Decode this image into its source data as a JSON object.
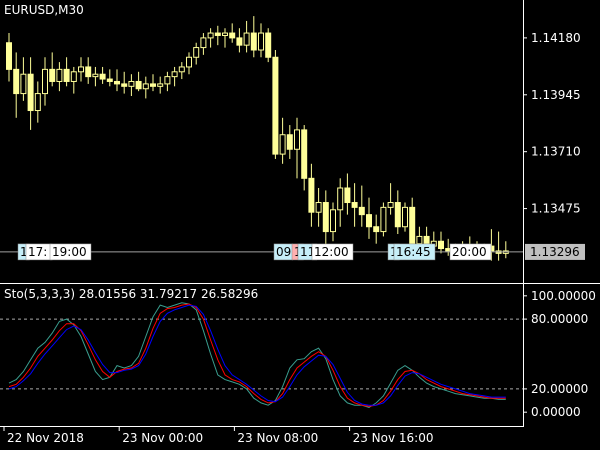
{
  "chart_data": [
    {
      "type": "candlestick",
      "title": "EURUSD,M30",
      "ylim": [
        1.1318,
        1.1432
      ],
      "y_ticks": [
        "1.14180",
        "1.13945",
        "1.13710",
        "1.13475"
      ],
      "y_tick_values": [
        1.1418,
        1.13945,
        1.1371,
        1.13475
      ],
      "last_price": "1.13296",
      "last_price_value": 1.13296,
      "grid": false,
      "colors": {
        "bull": "#ffff99",
        "bear": "#ffff99",
        "wick": "#ffff99",
        "price_tag": "#c0c0c0",
        "event_tag": "#c6eef8"
      },
      "event_tags": [
        {
          "text": "1",
          "style": "event"
        },
        {
          "text": "17:",
          "style": "plain"
        },
        {
          "text": "19:00",
          "style": "plain"
        },
        {
          "text": "09",
          "style": "event"
        },
        {
          "text": "1",
          "style": "event_red"
        },
        {
          "text": "11",
          "style": "event"
        },
        {
          "text": "12:00",
          "style": "plain"
        },
        {
          "text": "1",
          "style": "event"
        },
        {
          "text": "16:45",
          "style": "event"
        },
        {
          "text": "20:00",
          "style": "plain"
        }
      ],
      "candles": [
        [
          1.1416,
          1.142,
          1.14,
          1.1405
        ],
        [
          1.1405,
          1.1412,
          1.1385,
          1.1395
        ],
        [
          1.1395,
          1.141,
          1.1392,
          1.1403
        ],
        [
          1.1403,
          1.141,
          1.138,
          1.1388
        ],
        [
          1.1388,
          1.14,
          1.1383,
          1.1395
        ],
        [
          1.1395,
          1.141,
          1.139,
          1.1405
        ],
        [
          1.1405,
          1.1412,
          1.1398,
          1.14
        ],
        [
          1.14,
          1.1408,
          1.1396,
          1.1405
        ],
        [
          1.1405,
          1.141,
          1.1398,
          1.14
        ],
        [
          1.14,
          1.1406,
          1.1395,
          1.1404
        ],
        [
          1.1404,
          1.141,
          1.14,
          1.1406
        ],
        [
          1.1406,
          1.141,
          1.1399,
          1.1402
        ],
        [
          1.1402,
          1.1406,
          1.1398,
          1.1403
        ],
        [
          1.1403,
          1.1406,
          1.1399,
          1.1401
        ],
        [
          1.1401,
          1.1405,
          1.1398,
          1.14
        ],
        [
          1.14,
          1.1405,
          1.1396,
          1.1399
        ],
        [
          1.1399,
          1.1404,
          1.1395,
          1.1398
        ],
        [
          1.1398,
          1.1403,
          1.1394,
          1.14
        ],
        [
          1.14,
          1.1404,
          1.1396,
          1.1397
        ],
        [
          1.1397,
          1.1402,
          1.1393,
          1.1399
        ],
        [
          1.1399,
          1.1403,
          1.1396,
          1.1398
        ],
        [
          1.1398,
          1.1402,
          1.1395,
          1.1399
        ],
        [
          1.1399,
          1.1404,
          1.1396,
          1.1402
        ],
        [
          1.1402,
          1.1406,
          1.1398,
          1.1404
        ],
        [
          1.1404,
          1.1408,
          1.1401,
          1.1406
        ],
        [
          1.1406,
          1.1412,
          1.1403,
          1.141
        ],
        [
          1.141,
          1.1416,
          1.1407,
          1.1414
        ],
        [
          1.1414,
          1.142,
          1.1411,
          1.1418
        ],
        [
          1.1418,
          1.1422,
          1.1414,
          1.142
        ],
        [
          1.142,
          1.1423,
          1.1415,
          1.1419
        ],
        [
          1.1419,
          1.1422,
          1.1414,
          1.142
        ],
        [
          1.142,
          1.1424,
          1.1416,
          1.1418
        ],
        [
          1.1418,
          1.1422,
          1.1412,
          1.1415
        ],
        [
          1.1415,
          1.1425,
          1.1412,
          1.142
        ],
        [
          1.142,
          1.1427,
          1.141,
          1.1413
        ],
        [
          1.1413,
          1.1424,
          1.141,
          1.142
        ],
        [
          1.142,
          1.1422,
          1.1408,
          1.141
        ],
        [
          1.141,
          1.1413,
          1.1368,
          1.137
        ],
        [
          1.137,
          1.1385,
          1.1366,
          1.1378
        ],
        [
          1.1378,
          1.1382,
          1.1368,
          1.1372
        ],
        [
          1.1372,
          1.1385,
          1.136,
          1.138
        ],
        [
          1.138,
          1.1382,
          1.1355,
          1.136
        ],
        [
          1.136,
          1.1366,
          1.134,
          1.1346
        ],
        [
          1.1346,
          1.1356,
          1.134,
          1.135
        ],
        [
          1.135,
          1.1355,
          1.1332,
          1.1338
        ],
        [
          1.1338,
          1.135,
          1.1334,
          1.1347
        ],
        [
          1.1347,
          1.136,
          1.134,
          1.1356
        ],
        [
          1.1356,
          1.1362,
          1.1345,
          1.135
        ],
        [
          1.135,
          1.1358,
          1.134,
          1.1348
        ],
        [
          1.1348,
          1.1357,
          1.134,
          1.1345
        ],
        [
          1.1345,
          1.1352,
          1.1335,
          1.134
        ],
        [
          1.134,
          1.1345,
          1.1333,
          1.1338
        ],
        [
          1.1338,
          1.135,
          1.1336,
          1.1348
        ],
        [
          1.1348,
          1.1358,
          1.1345,
          1.135
        ],
        [
          1.135,
          1.1355,
          1.1337,
          1.134
        ],
        [
          1.134,
          1.135,
          1.1338,
          1.1348
        ],
        [
          1.1348,
          1.1352,
          1.133,
          1.1333
        ],
        [
          1.1333,
          1.134,
          1.1328,
          1.1336
        ],
        [
          1.1336,
          1.134,
          1.133,
          1.1332
        ],
        [
          1.1332,
          1.1338,
          1.1329,
          1.1334
        ],
        [
          1.1334,
          1.1338,
          1.1329,
          1.1331
        ],
        [
          1.1331,
          1.1335,
          1.1328,
          1.133
        ],
        [
          1.133,
          1.1333,
          1.1327,
          1.1329
        ],
        [
          1.1329,
          1.1334,
          1.1328,
          1.1331
        ],
        [
          1.1331,
          1.1336,
          1.1328,
          1.133
        ],
        [
          1.133,
          1.1334,
          1.1327,
          1.1329
        ],
        [
          1.1329,
          1.1333,
          1.1328,
          1.1332
        ],
        [
          1.1332,
          1.1339,
          1.1326,
          1.133
        ],
        [
          1.133,
          1.1338,
          1.1326,
          1.1329
        ],
        [
          1.1329,
          1.1334,
          1.1327,
          1.133
        ]
      ]
    },
    {
      "type": "line",
      "title": "Sto(5,3,3,3) 28.01556 31.79217 26.58296",
      "ylim": [
        -5,
        105
      ],
      "y_ticks": [
        "100.00000",
        "80.00000",
        "20.00000",
        "0.00000"
      ],
      "y_tick_values": [
        100,
        80,
        20,
        0
      ],
      "levels": [
        80,
        20
      ],
      "x_labels": [
        "22 Nov 2018",
        "23 Nov 00:00",
        "23 Nov 08:00",
        "23 Nov 16:00"
      ],
      "x_label_index": [
        0,
        16,
        32,
        48
      ],
      "series": [
        {
          "color": "#3a9e8f",
          "values": [
            25,
            28,
            35,
            45,
            55,
            60,
            68,
            78,
            80,
            75,
            65,
            50,
            35,
            28,
            30,
            40,
            38,
            40,
            48,
            65,
            82,
            92,
            90,
            92,
            94,
            93,
            88,
            70,
            50,
            32,
            28,
            26,
            24,
            20,
            12,
            8,
            6,
            10,
            22,
            38,
            45,
            46,
            52,
            55,
            46,
            28,
            14,
            8,
            6,
            6,
            4,
            8,
            14,
            25,
            36,
            40,
            36,
            30,
            25,
            22,
            20,
            18,
            16,
            15,
            14,
            13,
            12,
            12,
            11,
            11
          ]
        },
        {
          "color": "#ff0000",
          "values": [
            22,
            24,
            30,
            38,
            48,
            55,
            62,
            70,
            76,
            76,
            70,
            58,
            45,
            35,
            30,
            35,
            37,
            38,
            42,
            55,
            72,
            85,
            89,
            90,
            92,
            93,
            90,
            80,
            62,
            45,
            32,
            28,
            26,
            22,
            16,
            11,
            8,
            9,
            16,
            28,
            38,
            43,
            48,
            52,
            48,
            36,
            22,
            12,
            8,
            6,
            5,
            6,
            10,
            18,
            28,
            35,
            36,
            33,
            28,
            25,
            22,
            20,
            18,
            16,
            15,
            14,
            13,
            12,
            12,
            12
          ]
        },
        {
          "color": "#0000ff",
          "values": [
            20,
            22,
            27,
            33,
            42,
            50,
            57,
            64,
            71,
            74,
            71,
            62,
            51,
            41,
            34,
            34,
            36,
            37,
            40,
            50,
            65,
            78,
            85,
            88,
            90,
            92,
            91,
            84,
            70,
            54,
            40,
            32,
            28,
            24,
            19,
            14,
            10,
            9,
            13,
            22,
            32,
            39,
            44,
            49,
            48,
            41,
            29,
            17,
            10,
            7,
            6,
            6,
            8,
            14,
            23,
            31,
            34,
            33,
            30,
            27,
            24,
            22,
            20,
            18,
            16,
            15,
            14,
            13,
            13,
            13
          ]
        }
      ]
    }
  ]
}
